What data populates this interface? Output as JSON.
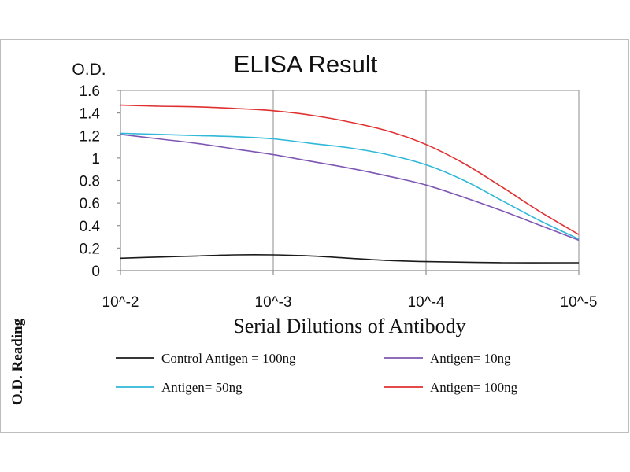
{
  "chart_data": {
    "type": "line",
    "title": "ELISA Result",
    "ylabel_top": "O.D.",
    "ylabel_side": "O.D. Reading",
    "xlabel": "Serial Dilutions of Antibody",
    "categories": [
      "10^-2",
      "10^-3",
      "10^-4",
      "10^-5"
    ],
    "x": [
      0,
      1,
      2,
      3
    ],
    "ylim": [
      0,
      1.6
    ],
    "yticks": [
      "0",
      "0.2",
      "0.4",
      "0.6",
      "0.8",
      "1",
      "1.2",
      "1.4",
      "1.6"
    ],
    "grid": "vertical",
    "legend_position": "bottom",
    "series": [
      {
        "name": "Control Antigen = 100ng",
        "color": "#1a1a1a",
        "x": [
          0,
          0.25,
          0.5,
          0.75,
          1,
          1.25,
          1.5,
          1.75,
          2,
          2.5,
          3
        ],
        "values": [
          0.11,
          0.12,
          0.13,
          0.14,
          0.14,
          0.13,
          0.11,
          0.09,
          0.08,
          0.07,
          0.07
        ]
      },
      {
        "name": "Antigen= 10ng",
        "color": "#7e57b3",
        "x": [
          0,
          0.25,
          0.5,
          0.75,
          1,
          1.25,
          1.5,
          1.75,
          2,
          2.25,
          2.5,
          2.75,
          3
        ],
        "values": [
          1.21,
          1.17,
          1.13,
          1.08,
          1.03,
          0.97,
          0.91,
          0.84,
          0.76,
          0.65,
          0.53,
          0.4,
          0.27
        ]
      },
      {
        "name": "Antigen= 50ng",
        "color": "#2fb8d8",
        "x": [
          0,
          0.25,
          0.5,
          0.75,
          1,
          1.25,
          1.5,
          1.75,
          2,
          2.25,
          2.5,
          2.75,
          3
        ],
        "values": [
          1.22,
          1.21,
          1.2,
          1.19,
          1.17,
          1.13,
          1.09,
          1.03,
          0.94,
          0.8,
          0.62,
          0.44,
          0.28
        ]
      },
      {
        "name": "Antigen= 100ng",
        "color": "#e03030",
        "x": [
          0,
          0.25,
          0.5,
          0.75,
          1,
          1.25,
          1.5,
          1.75,
          2,
          2.25,
          2.5,
          2.75,
          3
        ],
        "values": [
          1.47,
          1.46,
          1.455,
          1.44,
          1.42,
          1.38,
          1.32,
          1.24,
          1.12,
          0.95,
          0.74,
          0.52,
          0.32
        ]
      }
    ]
  }
}
